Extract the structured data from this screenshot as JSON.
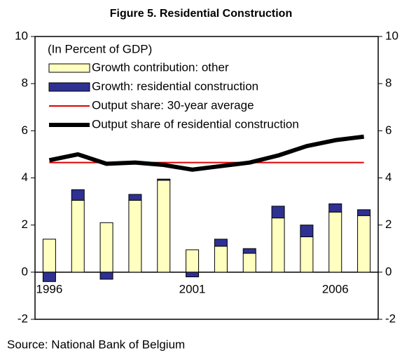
{
  "chart_data": {
    "type": "bar",
    "title": "Figure 5. Residential Construction",
    "annotation": "(In Percent of GDP)",
    "source": "Source: National Bank of Belgium",
    "categories": [
      "1996",
      null,
      null,
      null,
      null,
      "2001",
      null,
      null,
      null,
      null,
      "2006",
      null
    ],
    "series": [
      {
        "name": "Growth contribution: other",
        "type": "bar",
        "color": "#ffffc0",
        "values": [
          1.4,
          3.05,
          2.1,
          3.05,
          3.9,
          0.95,
          1.1,
          0.8,
          2.3,
          1.5,
          2.55,
          2.4
        ]
      },
      {
        "name": "Growth: residential construction",
        "type": "bar",
        "color": "#2e3192",
        "values": [
          -0.4,
          0.45,
          -0.3,
          0.25,
          0.05,
          -0.2,
          0.3,
          0.2,
          0.5,
          0.5,
          0.35,
          0.25
        ]
      },
      {
        "name": "Output share: 30-year average",
        "type": "line",
        "color": "#e00000",
        "width": 2,
        "values": [
          4.65,
          4.65,
          4.65,
          4.65,
          4.65,
          4.65,
          4.65,
          4.65,
          4.65,
          4.65,
          4.65,
          4.65
        ]
      },
      {
        "name": "Output share of residential construction",
        "type": "line",
        "color": "#000000",
        "width": 6,
        "values": [
          4.75,
          5.0,
          4.6,
          4.65,
          4.55,
          4.35,
          4.5,
          4.65,
          4.95,
          5.35,
          5.6,
          5.75
        ]
      }
    ],
    "ylim": [
      -2,
      10
    ],
    "yticks": [
      -2,
      0,
      2,
      4,
      6,
      8,
      10
    ],
    "y2lim": [
      -2,
      10
    ],
    "y2ticks": [
      -2,
      0,
      2,
      4,
      6,
      8,
      10
    ]
  }
}
